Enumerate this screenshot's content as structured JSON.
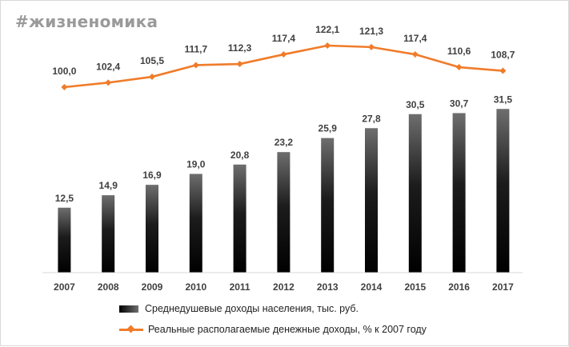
{
  "brand": "#жизненомика",
  "colors": {
    "line": "#f07c2a",
    "bar_dark": "#000000",
    "bar_light": "#6e6e6e",
    "label": "#404040"
  },
  "legend": {
    "bars": "Среднедушевые доходы населения, тыс. руб.",
    "line": "Реальные располагаемые денежные доходы, % к 2007  году"
  },
  "chart_data": {
    "type": "bar",
    "categories": [
      "2007",
      "2008",
      "2009",
      "2010",
      "2011",
      "2012",
      "2013",
      "2014",
      "2015",
      "2016",
      "2017"
    ],
    "series": [
      {
        "name": "Среднедушевые доходы населения, тыс. руб.",
        "type": "bar",
        "values": [
          12.5,
          14.9,
          16.9,
          19.0,
          20.8,
          23.2,
          25.9,
          27.8,
          30.5,
          30.7,
          31.5
        ],
        "labels": [
          "12,5",
          "14,9",
          "16,9",
          "19,0",
          "20,8",
          "23,2",
          "25,9",
          "27,8",
          "30,5",
          "30,7",
          "31,5"
        ]
      },
      {
        "name": "Реальные располагаемые денежные доходы, % к 2007  году",
        "type": "line",
        "values": [
          100.0,
          102.4,
          105.5,
          111.7,
          112.3,
          117.4,
          122.1,
          121.3,
          117.4,
          110.6,
          108.7
        ],
        "labels": [
          "100,0",
          "102,4",
          "105,5",
          "111,7",
          "112,3",
          "117,4",
          "122,1",
          "121,3",
          "117,4",
          "110,6",
          "108,7"
        ]
      }
    ],
    "legend_position": "bottom",
    "grid": false
  }
}
